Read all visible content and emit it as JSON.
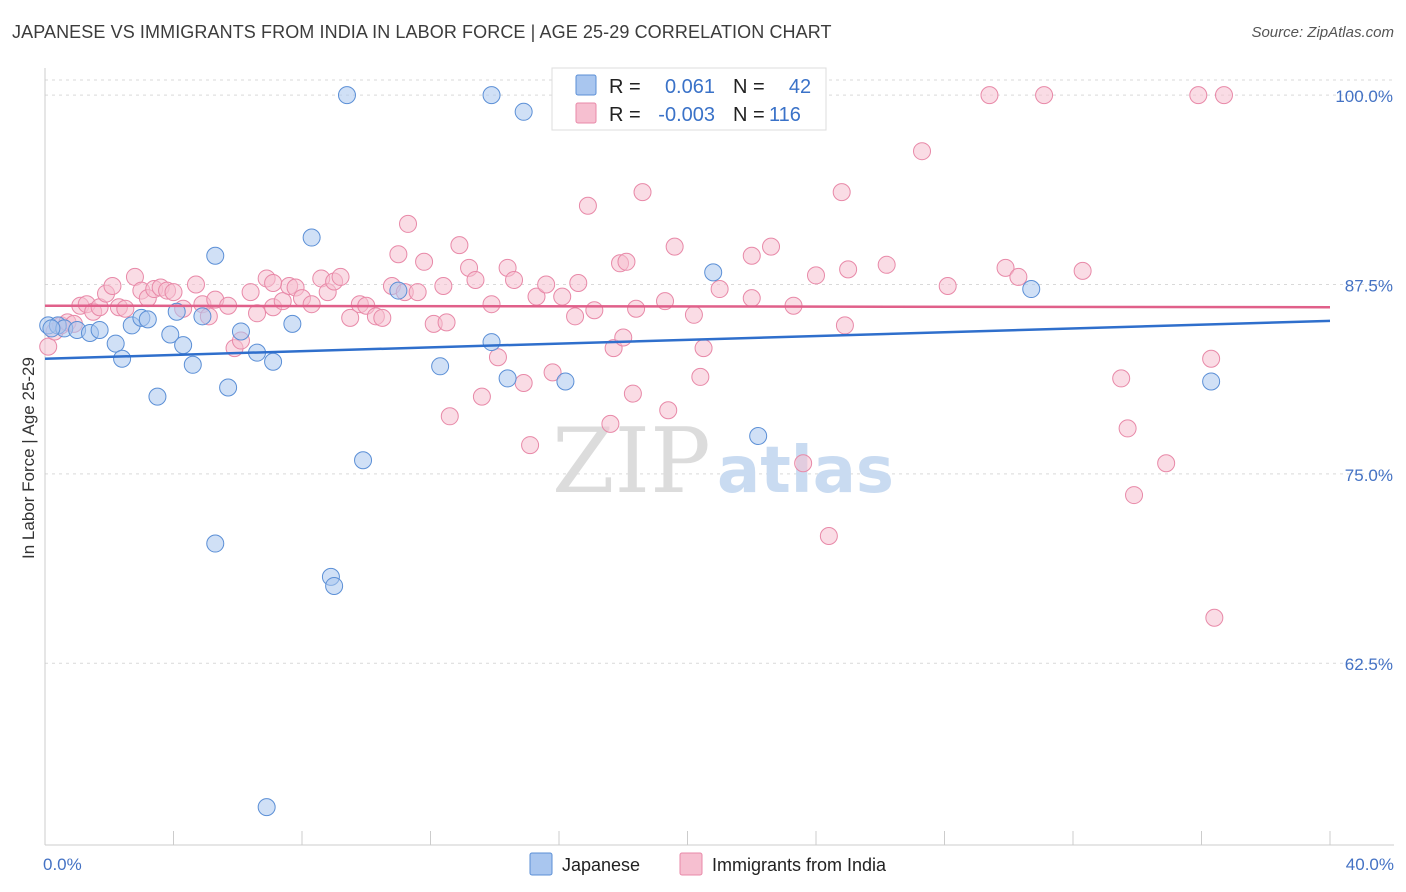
{
  "title": "JAPANESE VS IMMIGRANTS FROM INDIA IN LABOR FORCE | AGE 25-29 CORRELATION CHART",
  "source": "Source: ZipAtlas.com",
  "watermark": {
    "zip": "ZIP",
    "atlas": "atlas"
  },
  "colors": {
    "japanese_fill": "#a9c6ef",
    "japanese_stroke": "#5b8fd6",
    "japanese_line": "#2f6fcc",
    "india_fill": "#f6bfd0",
    "india_stroke": "#e889a8",
    "india_line": "#e0608a",
    "tick_label": "#4472c4",
    "grid": "#d9d9d9"
  },
  "legend": {
    "rows": [
      {
        "r_label": "R =",
        "r_value": "0.061",
        "n_label": "N =",
        "n_value": "42"
      },
      {
        "r_label": "R =",
        "r_value": "-0.003",
        "n_label": "N =",
        "n_value": "116"
      }
    ]
  },
  "bottom_legend": {
    "japanese": "Japanese",
    "india": "Immigrants from India"
  },
  "chart_data": {
    "type": "scatter",
    "title": "JAPANESE VS IMMIGRANTS FROM INDIA IN LABOR FORCE | AGE 25-29 CORRELATION CHART",
    "xlabel": "",
    "ylabel": "In Labor Force | Age 25-29",
    "xlim": [
      0,
      40
    ],
    "ylim": [
      50.5,
      101
    ],
    "x_tick_labels": [
      "0.0%",
      "40.0%"
    ],
    "y_ticks": [
      62.5,
      75.0,
      87.5,
      100.0
    ],
    "y_tick_labels": [
      "62.5%",
      "75.0%",
      "87.5%",
      "100.0%"
    ],
    "grid": true,
    "series": [
      {
        "name": "Japanese",
        "R": 0.061,
        "N": 42,
        "trend": {
          "x": [
            0,
            40
          ],
          "y": [
            82.6,
            85.1
          ]
        },
        "points": [
          [
            0.1,
            84.8
          ],
          [
            0.4,
            84.8
          ],
          [
            0.6,
            84.6
          ],
          [
            1.0,
            84.5
          ],
          [
            1.4,
            84.3
          ],
          [
            1.7,
            84.5
          ],
          [
            2.2,
            83.6
          ],
          [
            2.4,
            82.6
          ],
          [
            2.7,
            84.8
          ],
          [
            3.0,
            85.3
          ],
          [
            3.2,
            85.2
          ],
          [
            3.5,
            80.1
          ],
          [
            3.9,
            84.2
          ],
          [
            4.1,
            85.7
          ],
          [
            4.3,
            83.5
          ],
          [
            4.6,
            82.2
          ],
          [
            4.9,
            85.4
          ],
          [
            5.3,
            89.4
          ],
          [
            5.3,
            70.4
          ],
          [
            5.7,
            80.7
          ],
          [
            6.1,
            84.4
          ],
          [
            6.6,
            83.0
          ],
          [
            6.9,
            53.0
          ],
          [
            7.1,
            82.4
          ],
          [
            7.7,
            84.9
          ],
          [
            8.3,
            90.6
          ],
          [
            8.9,
            68.2
          ],
          [
            9.0,
            67.6
          ],
          [
            9.4,
            100.0
          ],
          [
            9.9,
            75.9
          ],
          [
            11.0,
            87.1
          ],
          [
            12.3,
            82.1
          ],
          [
            13.9,
            100.0
          ],
          [
            13.9,
            83.7
          ],
          [
            14.4,
            81.3
          ],
          [
            14.9,
            98.9
          ],
          [
            16.2,
            81.1
          ],
          [
            20.8,
            88.3
          ],
          [
            22.2,
            77.5
          ],
          [
            30.7,
            87.2
          ],
          [
            36.3,
            81.1
          ],
          [
            0.2,
            84.6
          ]
        ]
      },
      {
        "name": "Immigrants from India",
        "R": -0.003,
        "N": 116,
        "trend": {
          "x": [
            0,
            40
          ],
          "y": [
            86.1,
            86.0
          ]
        },
        "points": [
          [
            0.1,
            83.4
          ],
          [
            0.3,
            84.4
          ],
          [
            0.5,
            84.8
          ],
          [
            0.7,
            85.0
          ],
          [
            0.9,
            84.9
          ],
          [
            1.1,
            86.1
          ],
          [
            1.3,
            86.2
          ],
          [
            1.5,
            85.7
          ],
          [
            1.7,
            86.0
          ],
          [
            1.9,
            86.9
          ],
          [
            2.1,
            87.4
          ],
          [
            2.3,
            86.0
          ],
          [
            2.5,
            85.9
          ],
          [
            2.8,
            88.0
          ],
          [
            3.0,
            87.1
          ],
          [
            3.2,
            86.6
          ],
          [
            3.4,
            87.2
          ],
          [
            3.6,
            87.3
          ],
          [
            3.8,
            87.1
          ],
          [
            4.0,
            87.0
          ],
          [
            4.3,
            85.9
          ],
          [
            4.7,
            87.5
          ],
          [
            4.9,
            86.2
          ],
          [
            5.1,
            85.4
          ],
          [
            5.3,
            86.5
          ],
          [
            5.7,
            86.1
          ],
          [
            5.9,
            83.3
          ],
          [
            6.1,
            83.8
          ],
          [
            6.4,
            87.0
          ],
          [
            6.6,
            85.6
          ],
          [
            6.9,
            87.9
          ],
          [
            7.1,
            86.0
          ],
          [
            7.4,
            86.4
          ],
          [
            7.6,
            87.4
          ],
          [
            7.8,
            87.3
          ],
          [
            8.0,
            86.6
          ],
          [
            8.3,
            86.2
          ],
          [
            8.6,
            87.9
          ],
          [
            8.8,
            87.0
          ],
          [
            9.0,
            87.7
          ],
          [
            9.2,
            88.0
          ],
          [
            9.5,
            85.3
          ],
          [
            9.8,
            86.2
          ],
          [
            10.0,
            86.1
          ],
          [
            10.3,
            85.4
          ],
          [
            10.5,
            85.3
          ],
          [
            10.8,
            87.4
          ],
          [
            11.0,
            89.5
          ],
          [
            11.2,
            87.0
          ],
          [
            11.3,
            91.5
          ],
          [
            11.6,
            87.0
          ],
          [
            11.8,
            89.0
          ],
          [
            12.1,
            84.9
          ],
          [
            12.4,
            87.4
          ],
          [
            12.6,
            78.8
          ],
          [
            12.9,
            90.1
          ],
          [
            13.2,
            88.6
          ],
          [
            13.4,
            87.8
          ],
          [
            13.6,
            80.1
          ],
          [
            13.9,
            86.2
          ],
          [
            14.1,
            82.7
          ],
          [
            14.4,
            88.6
          ],
          [
            14.6,
            87.8
          ],
          [
            14.9,
            81.0
          ],
          [
            15.3,
            86.7
          ],
          [
            15.1,
            76.9
          ],
          [
            15.6,
            87.5
          ],
          [
            15.8,
            81.7
          ],
          [
            16.1,
            86.7
          ],
          [
            16.5,
            85.4
          ],
          [
            16.6,
            87.6
          ],
          [
            16.9,
            92.7
          ],
          [
            17.1,
            85.8
          ],
          [
            17.6,
            78.3
          ],
          [
            17.7,
            83.3
          ],
          [
            17.9,
            88.9
          ],
          [
            18.0,
            84.0
          ],
          [
            18.1,
            89.0
          ],
          [
            18.3,
            80.3
          ],
          [
            18.4,
            85.9
          ],
          [
            18.6,
            93.6
          ],
          [
            19.3,
            86.4
          ],
          [
            19.4,
            79.2
          ],
          [
            19.6,
            90.0
          ],
          [
            20.2,
            85.5
          ],
          [
            20.4,
            81.4
          ],
          [
            20.5,
            83.3
          ],
          [
            21.0,
            87.2
          ],
          [
            22.0,
            86.6
          ],
          [
            22.0,
            89.4
          ],
          [
            22.6,
            90.0
          ],
          [
            23.3,
            86.1
          ],
          [
            23.6,
            75.7
          ],
          [
            24.0,
            88.1
          ],
          [
            24.4,
            70.9
          ],
          [
            24.8,
            93.6
          ],
          [
            24.9,
            84.8
          ],
          [
            25.0,
            88.5
          ],
          [
            26.2,
            88.8
          ],
          [
            27.3,
            96.3
          ],
          [
            28.1,
            87.4
          ],
          [
            29.4,
            100.0
          ],
          [
            29.9,
            88.6
          ],
          [
            30.3,
            88.0
          ],
          [
            31.1,
            100.0
          ],
          [
            32.3,
            88.4
          ],
          [
            33.5,
            81.3
          ],
          [
            33.7,
            78.0
          ],
          [
            33.9,
            73.6
          ],
          [
            34.9,
            75.7
          ],
          [
            35.9,
            100.0
          ],
          [
            36.3,
            82.6
          ],
          [
            36.4,
            65.5
          ],
          [
            36.7,
            100.0
          ],
          [
            7.1,
            87.6
          ],
          [
            12.5,
            85.0
          ]
        ]
      }
    ]
  }
}
